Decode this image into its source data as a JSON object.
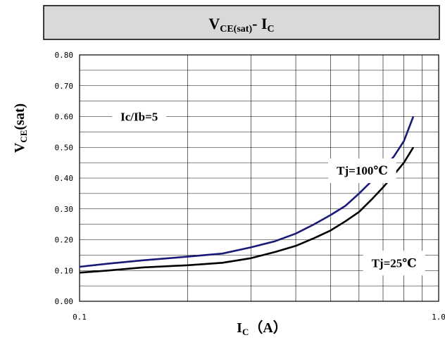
{
  "chart_data": {
    "type": "line",
    "title": {
      "main": "V",
      "sub": "CE(sat)",
      "dash": "- ",
      "main2": "I",
      "sub2": "C"
    },
    "ylabel": {
      "main": "V",
      "sub": "CE",
      "rest": "(sat)"
    },
    "xlabel": {
      "main": "I",
      "sub": "C",
      "rest": "（A）"
    },
    "xscale": "log",
    "xlim": [
      0.1,
      1.0
    ],
    "ylim": [
      0.0,
      0.8
    ],
    "x_ticks": [
      {
        "value": 0.1,
        "label": "0.1"
      },
      {
        "value": 1.0,
        "label": "1.0"
      }
    ],
    "y_ticks": [
      {
        "value": 0.0,
        "label": "0.00"
      },
      {
        "value": 0.1,
        "label": "0.10"
      },
      {
        "value": 0.2,
        "label": "0.20"
      },
      {
        "value": 0.3,
        "label": "0.30"
      },
      {
        "value": 0.4,
        "label": "0.40"
      },
      {
        "value": 0.5,
        "label": "0.50"
      },
      {
        "value": 0.6,
        "label": "0.60"
      },
      {
        "value": 0.7,
        "label": "0.70"
      },
      {
        "value": 0.8,
        "label": "0.80"
      }
    ],
    "grid": true,
    "series": [
      {
        "name": "Tj=100℃",
        "color": "#1a1a78",
        "points": [
          [
            0.1,
            0.112
          ],
          [
            0.12,
            0.122
          ],
          [
            0.15,
            0.133
          ],
          [
            0.2,
            0.145
          ],
          [
            0.25,
            0.155
          ],
          [
            0.3,
            0.175
          ],
          [
            0.35,
            0.195
          ],
          [
            0.4,
            0.22
          ],
          [
            0.45,
            0.25
          ],
          [
            0.5,
            0.28
          ],
          [
            0.55,
            0.31
          ],
          [
            0.6,
            0.35
          ],
          [
            0.65,
            0.39
          ],
          [
            0.7,
            0.43
          ],
          [
            0.75,
            0.47
          ],
          [
            0.8,
            0.52
          ],
          [
            0.85,
            0.6
          ]
        ]
      },
      {
        "name": "Tj=25℃",
        "color": "#000000",
        "points": [
          [
            0.1,
            0.093
          ],
          [
            0.12,
            0.1
          ],
          [
            0.15,
            0.11
          ],
          [
            0.2,
            0.117
          ],
          [
            0.25,
            0.125
          ],
          [
            0.3,
            0.14
          ],
          [
            0.35,
            0.16
          ],
          [
            0.4,
            0.18
          ],
          [
            0.45,
            0.205
          ],
          [
            0.5,
            0.23
          ],
          [
            0.55,
            0.26
          ],
          [
            0.6,
            0.29
          ],
          [
            0.65,
            0.33
          ],
          [
            0.7,
            0.37
          ],
          [
            0.75,
            0.41
          ],
          [
            0.8,
            0.45
          ],
          [
            0.85,
            0.5
          ]
        ]
      }
    ],
    "annotations": [
      {
        "text": "Ic/Ib=5",
        "x": 0.13,
        "y": 0.6,
        "boxed": true
      },
      {
        "text": "Tj=100℃",
        "x": 0.52,
        "y": 0.425,
        "boxed": true
      },
      {
        "text": "Tj=25℃",
        "x": 0.65,
        "y": 0.125,
        "boxed": true
      }
    ]
  }
}
